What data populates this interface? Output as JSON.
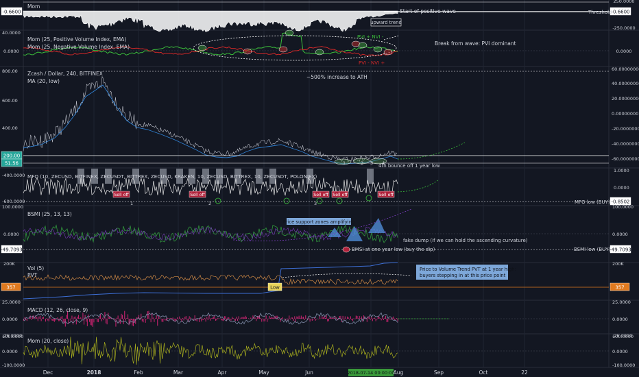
{
  "chart_data": {
    "type": "line",
    "x_axis_labels": [
      "Dec",
      "2018",
      "Feb",
      "Mar",
      "Apr",
      "May",
      "Jun",
      "2018-07-14 00:00:00",
      "Aug",
      "Sep",
      "Oct",
      "22"
    ],
    "panes": [
      {
        "id": "mom-top",
        "legend": [
          "Mom"
        ],
        "left_readout": "-0.6600",
        "right_readout": "-0.6600",
        "right_ticks": [
          "250.0000",
          "-250.0000"
        ],
        "annotations": [
          "Start of positive wave",
          "upward trend",
          "Threshold"
        ]
      },
      {
        "id": "pvi-nvi",
        "legend": [
          "Mom (25, Positive Volume Index, EMA)",
          "Mom (25, Negative Volume Index, EMA)"
        ],
        "left_ticks": [
          "40.0000",
          "0.0000"
        ],
        "right_ticks": [
          "0.0000"
        ],
        "annotations": [
          "PVI + NVI -",
          "PVI - NVI +",
          "Break from wave: PVI dominant"
        ]
      },
      {
        "id": "price",
        "legend": [
          "Zcash / Dollar, 240, BITFINEX",
          "MA (20, low)"
        ],
        "left_ticks": [
          "800.00",
          "600.00",
          "400.00"
        ],
        "left_badges": [
          "200.00",
          "51.56"
        ],
        "right_ticks": [
          "60.00000000",
          "40.00000000",
          "20.00000000",
          "0.00000000",
          "-20.00000000",
          "-40.00000000",
          "-60.00000000"
        ],
        "annotations": [
          "~500% increase to ATH",
          "4th bounce off 1 year low",
          "1",
          "2",
          "3",
          "4"
        ]
      },
      {
        "id": "mfo",
        "legend": [
          "MFO (10, ZECUSD, BITFINEX, ZECUSDT, BITTREX, ZECUSD, KRAKEN, 10, ZECUSD, BITTREX, 10, ZECUSDT, POLONIEX)"
        ],
        "left_ticks": [
          "-400.0000",
          "-600.0000"
        ],
        "right_ticks": [
          "1.0000",
          "0.0000"
        ],
        "right_badge": "-0.8502",
        "sell_labels": [
          "Sell off",
          "Sell off",
          "Sell off",
          "Sell off",
          "Sell off"
        ],
        "numbers": [
          "1",
          "2",
          "3"
        ],
        "annotations": [
          "MFO low (BUY)"
        ]
      },
      {
        "id": "bsmi",
        "legend": [
          "BSMI (25, 13, 13)"
        ],
        "left_ticks": [
          "100.0000",
          "0.0000"
        ],
        "left_badge": "-49.7093",
        "right_ticks": [
          "100.0000",
          "0.0000"
        ],
        "right_badge": "-49.7093",
        "annotations": [
          "Price support zones amplifying",
          "fake dump (if we can hold the ascending curvature)",
          "BMSI at one year low (buy the dip)",
          "BSMI low (BUY)"
        ]
      },
      {
        "id": "vol",
        "legend": [
          "Vol (5)",
          "PVT"
        ],
        "left_ticks": [
          "200K"
        ],
        "left_badge": "357",
        "right_ticks": [
          "200K"
        ],
        "right_badge": "357",
        "low_label": "Low",
        "annotations": [
          "Price to Volume Trend PVT at 1 year high:",
          "buyers stepping in at this price point"
        ]
      },
      {
        "id": "macd",
        "legend": [
          "MACD (12, 26, close, 9)"
        ],
        "left_ticks": [
          "25.0000",
          "0.0000",
          "-25.0000"
        ],
        "right_ticks": [
          "25.0000",
          "0.0000",
          "-25.0000"
        ]
      },
      {
        "id": "mom-bottom",
        "legend": [
          "Mom (20, close)"
        ],
        "left_ticks": [
          "100.0000",
          "0.0000",
          "-100.0000"
        ],
        "right_ticks": [
          "100.0000",
          "0.0000",
          "-100.0000"
        ]
      }
    ],
    "colors": {
      "background": "#131722",
      "grid": "#1f2433",
      "text": "#d1d4dc",
      "price": "#b9bcc6",
      "ma": "#2f7fd0",
      "pvi": "#3bbf3b",
      "nvi": "#d02828",
      "bsmi": "#2e8b3a",
      "vol": "#d28b46",
      "pvt": "#3d6fd6",
      "macd_hist": "#e2247a",
      "macd_line": "#7e8aa6",
      "mom": "#a6ac1e",
      "annotation_bubble": "#7da7d9",
      "sell_badge": "#b0213a",
      "threshold_line": "#ffffff",
      "low_badge": "#e7d45a",
      "level_badge": "#e07a1f"
    }
  }
}
